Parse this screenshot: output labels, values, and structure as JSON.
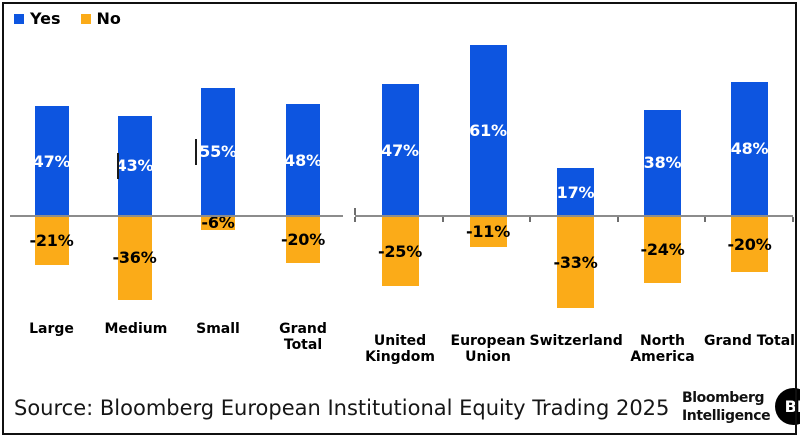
{
  "legend": {
    "items": [
      {
        "label": "Yes",
        "color": "#0d55e0"
      },
      {
        "label": "No",
        "color": "#fbab18"
      }
    ]
  },
  "chart_data": [
    {
      "type": "bar",
      "group_label": "firm-size",
      "categories": [
        "Large",
        "Medium",
        "Small",
        "Grand Total"
      ],
      "series": [
        {
          "name": "Yes",
          "values": [
            47,
            43,
            55,
            48
          ]
        },
        {
          "name": "No",
          "values": [
            -21,
            -36,
            -6,
            -20
          ]
        }
      ],
      "value_suffix": "%",
      "grid": false,
      "axis_ticks": false,
      "legend_position": "top-left"
    },
    {
      "type": "bar",
      "group_label": "region",
      "categories": [
        "United Kingdom",
        "European Union",
        "Switzerland",
        "North America",
        "Grand Total"
      ],
      "series": [
        {
          "name": "Yes",
          "values": [
            47,
            61,
            17,
            38,
            48
          ]
        },
        {
          "name": "No",
          "values": [
            -25,
            -11,
            -33,
            -24,
            -20
          ]
        }
      ],
      "value_suffix": "%",
      "grid": false,
      "axis_ticks": true,
      "legend_position": "none"
    }
  ],
  "colors": {
    "yes": "#0d55e0",
    "no": "#fbab18",
    "axis": "#8c8c8c",
    "tick": "#6e6e6e",
    "label_positive": "#ffffff",
    "label_negative": "#000000"
  },
  "source": {
    "text": "Source: Bloomberg European Institutional Equity Trading 2025"
  },
  "logo": {
    "line1": "Bloomberg",
    "line2": "Intelligence",
    "badge": "BI"
  }
}
